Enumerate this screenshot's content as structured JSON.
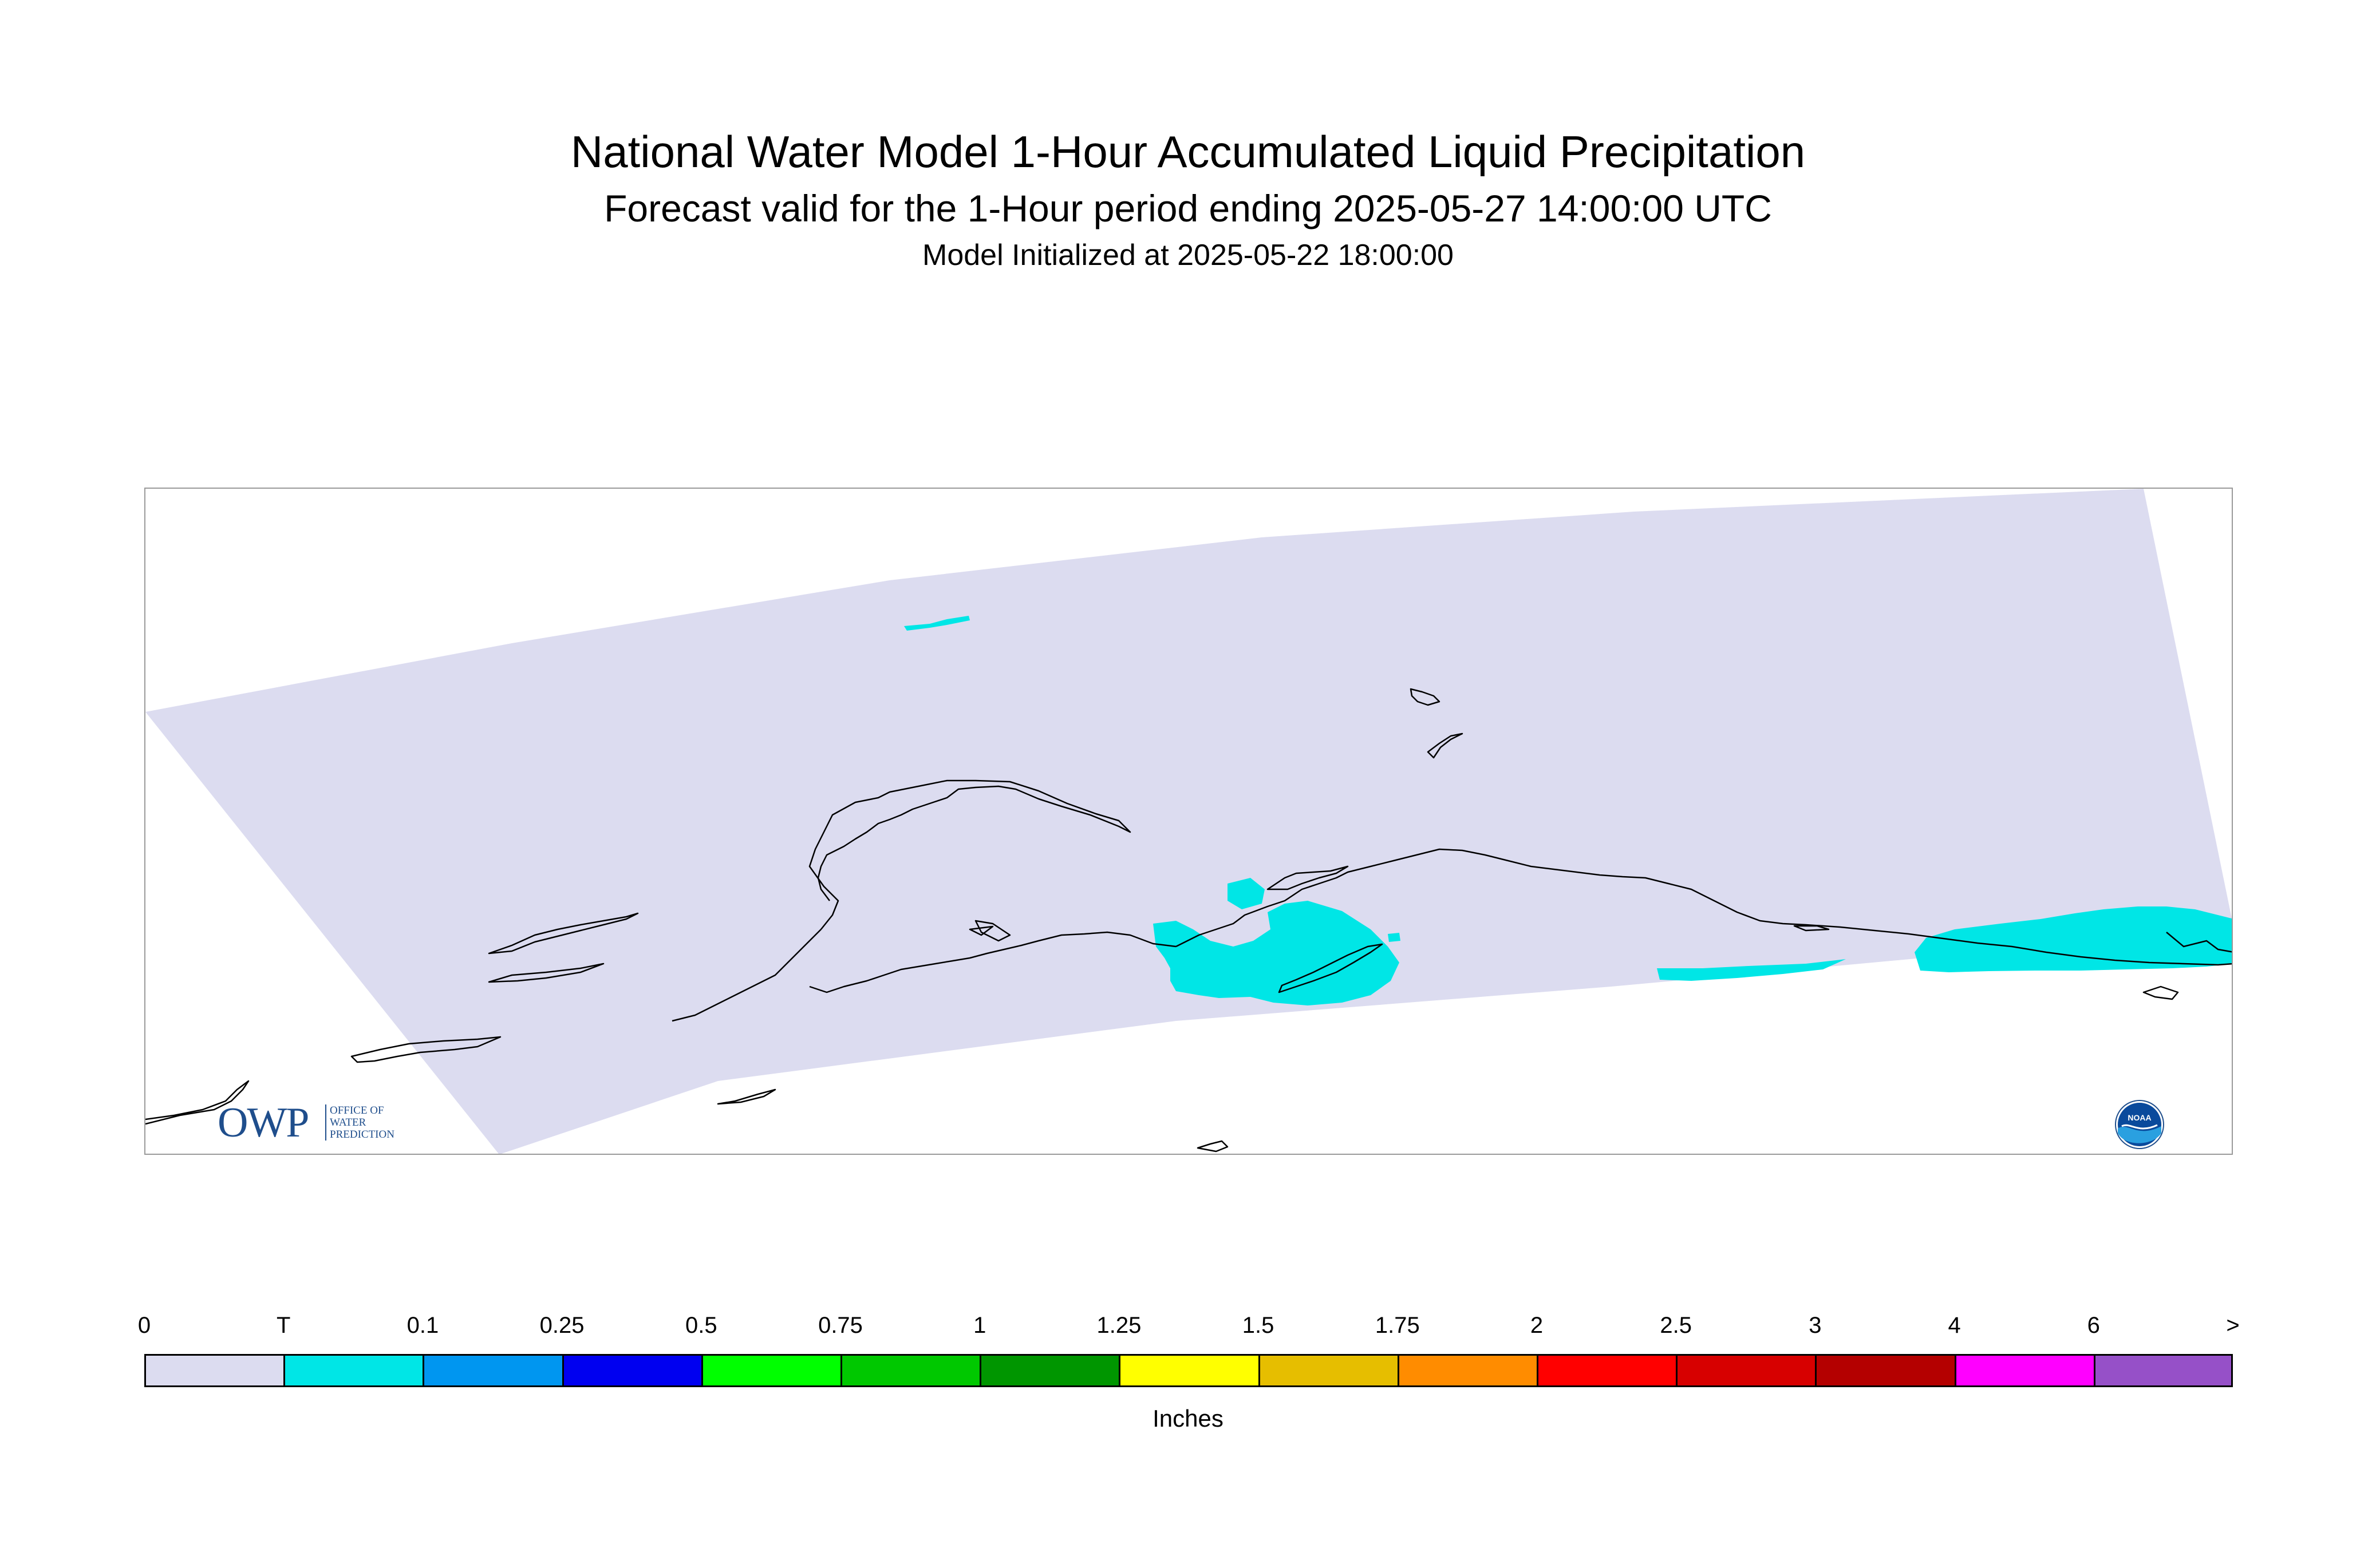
{
  "title": {
    "main": "National Water Model 1-Hour Accumulated Liquid Precipitation",
    "forecast": "Forecast valid for the 1-Hour period ending 2025-05-27 14:00:00 UTC",
    "initialized": "Model Initialized at 2025-05-22 18:00:00"
  },
  "map": {
    "region": "Alaska (Alaska Peninsula, Kodiak Island, Cook Inlet, Gulf of Alaska coast)",
    "colors": {
      "no_precip": "#dcdcf0",
      "trace": "#00e6e6",
      "coastline": "#000000",
      "border": "#9a9a9a"
    },
    "precip_areas": [
      "Kodiak Island / Cook Inlet",
      "Gulf of Alaska coast",
      "Northern arctic trace"
    ]
  },
  "logos": {
    "owp_big": "OWP",
    "owp_small_1": "OFFICE OF",
    "owp_small_2": "WATER",
    "owp_small_3": "PREDICTION",
    "noaa": "NOAA"
  },
  "legend": {
    "unit": "Inches",
    "labels": [
      "0",
      "T",
      "0.1",
      "0.25",
      "0.5",
      "0.75",
      "1",
      "1.25",
      "1.5",
      "1.75",
      "2",
      "2.5",
      "3",
      "4",
      "6",
      ">"
    ],
    "colors": [
      "#dcdcf0",
      "#00e6e6",
      "#0096f0",
      "#0000f0",
      "#00ff00",
      "#00c800",
      "#009600",
      "#ffff00",
      "#e6be00",
      "#ff8c00",
      "#ff0000",
      "#d70000",
      "#b40000",
      "#ff00ff",
      "#9650c8"
    ]
  }
}
